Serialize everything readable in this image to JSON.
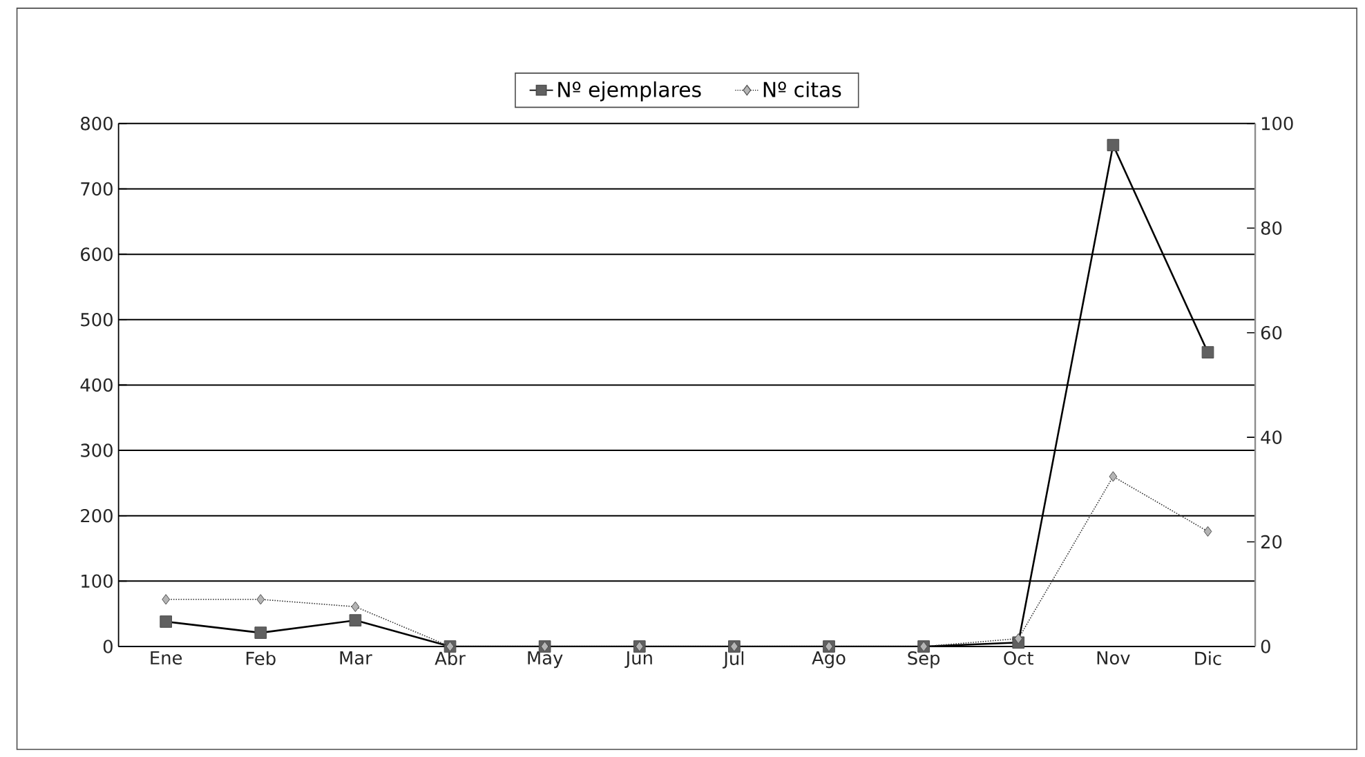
{
  "chart_data": {
    "type": "line",
    "categories": [
      "Ene",
      "Feb",
      "Mar",
      "Abr",
      "May",
      "Jun",
      "Jul",
      "Ago",
      "Sep",
      "Oct",
      "Nov",
      "Dic"
    ],
    "series": [
      {
        "name": "Nº ejemplares",
        "color": "#606060",
        "marker": "square",
        "line_style": "solid",
        "values": [
          38,
          21,
          40,
          0,
          0,
          0,
          0,
          0,
          0,
          6,
          767,
          450
        ]
      },
      {
        "name": "Nº citas",
        "color": "#b4b4b4",
        "marker": "diamond",
        "line_style": "dotted",
        "axis": "y2",
        "values": [
          9,
          9,
          7.6,
          0,
          0,
          0,
          0,
          0,
          0,
          1.5,
          32.5,
          22
        ]
      }
    ],
    "ylim": [
      0,
      800
    ],
    "yticks": [
      0,
      100,
      200,
      300,
      400,
      500,
      600,
      700,
      800
    ],
    "y2lim": [
      0,
      100
    ],
    "y2ticks": [
      0,
      20,
      40,
      60,
      80,
      100
    ],
    "grid": "y",
    "legend": "top"
  }
}
